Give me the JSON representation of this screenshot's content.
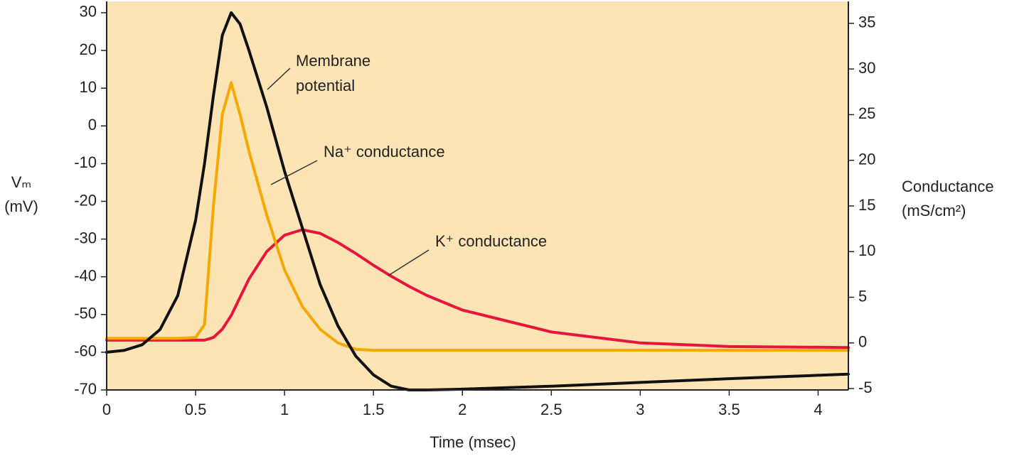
{
  "chart_data": {
    "type": "line",
    "x_label": "Time (msec)",
    "y_label": [
      "Vₘ",
      "(mV)"
    ],
    "y2_label": [
      "Conductance",
      "(mS/cm²)"
    ],
    "xlim": [
      0,
      4.17
    ],
    "xticks": [
      0,
      0.5,
      1,
      1.5,
      2,
      2.5,
      3,
      3.5,
      4
    ],
    "ylim": [
      -70,
      33
    ],
    "yticks": [
      -70,
      -60,
      -50,
      -40,
      -30,
      -20,
      -10,
      0,
      10,
      20,
      30
    ],
    "y2lim": [
      -5.15,
      37.4
    ],
    "y2ticks": [
      -5,
      0,
      5,
      10,
      15,
      20,
      25,
      30,
      35
    ],
    "background": "#fde4b4",
    "x": [
      0,
      0.1,
      0.2,
      0.3,
      0.4,
      0.5,
      0.55,
      0.6,
      0.65,
      0.7,
      0.75,
      0.8,
      0.9,
      1.0,
      1.1,
      1.2,
      1.3,
      1.4,
      1.5,
      1.6,
      1.7,
      1.8,
      2.0,
      2.5,
      3.0,
      3.5,
      4.17
    ],
    "series": [
      {
        "name": [
          "Membrane",
          "potential"
        ],
        "color": "#111111",
        "axis": "y",
        "values": [
          -60,
          -59.5,
          -58,
          -54,
          -45,
          -25,
          -10,
          8,
          24,
          30,
          27,
          20,
          5,
          -12,
          -27,
          -42,
          -53,
          -61,
          -66,
          -69,
          -70,
          -70,
          -69.8,
          -69,
          -68,
          -67,
          -65.8
        ]
      },
      {
        "name": "Na⁺ conductance",
        "color": "#f5a800",
        "axis": "y2",
        "values": [
          0.5,
          0.5,
          0.5,
          0.5,
          0.5,
          0.6,
          2,
          15,
          25,
          28.5,
          25,
          21,
          14,
          8,
          4,
          1.5,
          0,
          -0.7,
          -0.8,
          -0.8,
          -0.8,
          -0.8,
          -0.8,
          -0.8,
          -0.8,
          -0.8,
          -0.8
        ]
      },
      {
        "name": "K⁺ conductance",
        "color": "#e8143c",
        "axis": "y2",
        "values": [
          0.3,
          0.3,
          0.3,
          0.3,
          0.3,
          0.3,
          0.3,
          0.6,
          1.5,
          3,
          5,
          7,
          10,
          11.8,
          12.4,
          12,
          11,
          9.8,
          8.5,
          7.3,
          6.2,
          5.2,
          3.6,
          1.2,
          0,
          -0.4,
          -0.5
        ]
      }
    ]
  }
}
